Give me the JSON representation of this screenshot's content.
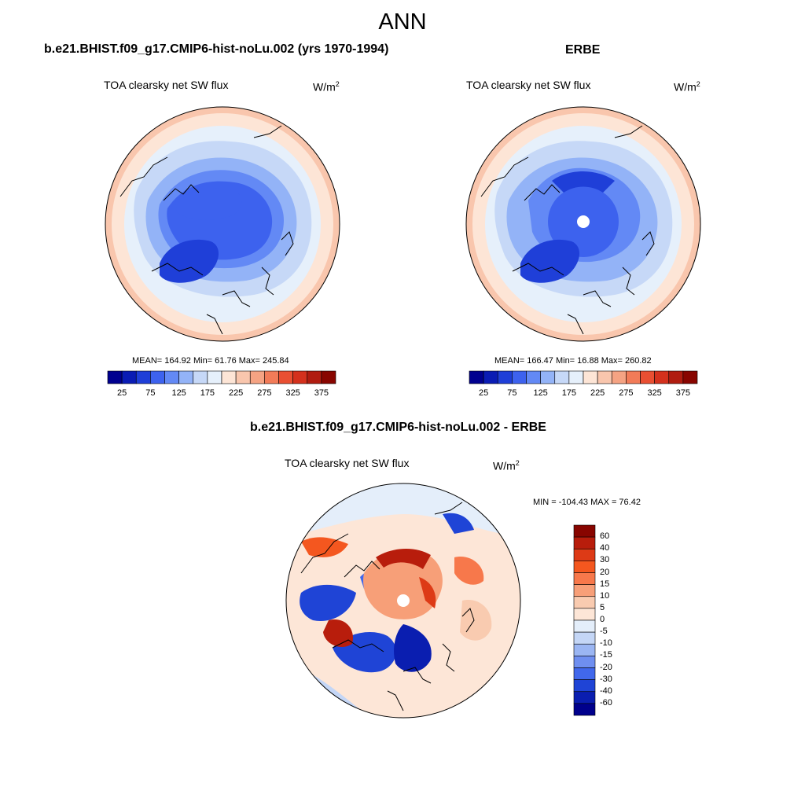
{
  "figure": {
    "title": "ANN"
  },
  "panels": {
    "model": {
      "title": "b.e21.BHIST.f09_g17.CMIP6-hist-noLu.002 (yrs 1970-1994)",
      "variable": "TOA clearsky net SW flux",
      "units_base": "W/m",
      "units_exp": "2",
      "stats": "MEAN= 164.92  Min=  61.76  Max= 245.84",
      "colorbar_ticks": [
        "25",
        "75",
        "125",
        "175",
        "225",
        "275",
        "325",
        "375"
      ]
    },
    "obs": {
      "title": "ERBE",
      "variable": "TOA clearsky net SW flux",
      "units_base": "W/m",
      "units_exp": "2",
      "stats": "MEAN= 166.47  Min=  16.88  Max= 260.82",
      "colorbar_ticks": [
        "25",
        "75",
        "125",
        "175",
        "225",
        "275",
        "325",
        "375"
      ]
    },
    "diff": {
      "title": "b.e21.BHIST.f09_g17.CMIP6-hist-noLu.002 - ERBE",
      "variable": "TOA clearsky net SW flux",
      "units_base": "W/m",
      "units_exp": "2",
      "stats": "MIN = -104.43 MAX =  76.42",
      "colorbar_labels": [
        "60",
        "40",
        "30",
        "20",
        "15",
        "10",
        "5",
        "0",
        "-5",
        "-10",
        "-15",
        "-20",
        "-30",
        "-40",
        "-60"
      ]
    }
  },
  "colors": {
    "abs_scale": [
      "#00008f",
      "#0a1cb4",
      "#1f3fd8",
      "#3d62ee",
      "#6389f5",
      "#93b3f7",
      "#c6d8f7",
      "#e6f0fb",
      "#fde5d6",
      "#f9c6ad",
      "#f5a383",
      "#f27b58",
      "#e94f32",
      "#d4311d",
      "#b01c10",
      "#880500"
    ],
    "diff_scale": [
      "#880500",
      "#b81d0c",
      "#dd3a16",
      "#f4571f",
      "#f7784b",
      "#f79f78",
      "#f9cbb0",
      "#fde6d7",
      "#e4eefa",
      "#c4d6f6",
      "#9bb6f3",
      "#6f8ff0",
      "#4168ec",
      "#1f44d6",
      "#0a1eb0",
      "#00008c"
    ]
  }
}
